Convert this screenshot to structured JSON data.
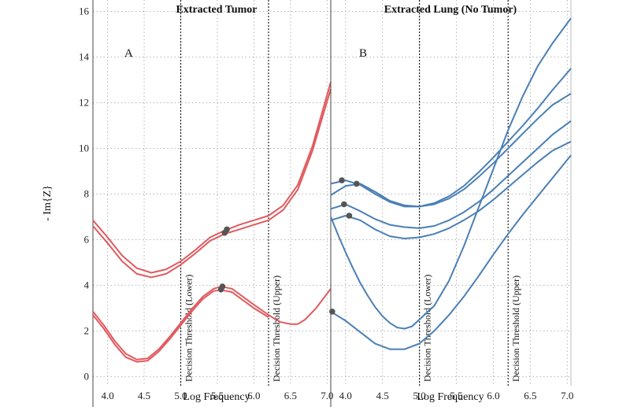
{
  "chart_data": [
    {
      "type": "line",
      "panel_letter": "A",
      "title": "Extracted Tumor",
      "xlabel": "Log Frequency",
      "ylabel": "- Im{Z}",
      "xlim": [
        3.8,
        7.05
      ],
      "ylim": [
        -0.4,
        16.5
      ],
      "x_ticks": [
        4.0,
        4.5,
        5.0,
        5.5,
        6.0,
        6.5,
        7.0
      ],
      "y_ticks": [
        0,
        2,
        4,
        6,
        8,
        10,
        12,
        14,
        16
      ],
      "grid": true,
      "line_color": "#e05a5e",
      "marker_color": "#555555",
      "thresholds": [
        {
          "x": 5.0,
          "label": "Decision Threshold (Lower)"
        },
        {
          "x": 6.2,
          "label": "Decision Threshold (Upper)"
        }
      ],
      "series": [
        {
          "x": [
            3.8,
            4.0,
            4.2,
            4.4,
            4.6,
            4.8,
            5.0,
            5.2,
            5.4,
            5.6,
            5.8,
            6.0,
            6.2,
            6.4,
            6.6,
            6.8,
            7.05
          ],
          "y": [
            6.85,
            6.1,
            5.3,
            4.75,
            4.55,
            4.7,
            5.05,
            5.55,
            6.1,
            6.4,
            6.65,
            6.85,
            7.05,
            7.5,
            8.4,
            10.1,
            12.9
          ],
          "marker": {
            "x": 5.63,
            "y": 6.45
          }
        },
        {
          "x": [
            3.8,
            4.0,
            4.2,
            4.4,
            4.6,
            4.8,
            5.0,
            5.2,
            5.4,
            5.6,
            5.8,
            6.0,
            6.2,
            6.4,
            6.6,
            6.8,
            7.05
          ],
          "y": [
            6.6,
            5.85,
            5.05,
            4.5,
            4.35,
            4.5,
            4.9,
            5.4,
            5.95,
            6.25,
            6.45,
            6.65,
            6.85,
            7.3,
            8.2,
            9.9,
            12.6
          ],
          "marker": {
            "x": 5.6,
            "y": 6.3
          }
        },
        {
          "x": [
            3.8,
            3.95,
            4.1,
            4.25,
            4.4,
            4.55,
            4.7,
            4.85,
            5.0,
            5.15,
            5.3,
            5.45,
            5.55,
            5.7,
            5.85,
            6.0,
            6.2,
            6.35,
            6.5,
            6.6,
            6.7,
            6.85,
            7.05
          ],
          "y": [
            2.85,
            2.25,
            1.55,
            1.0,
            0.75,
            0.8,
            1.2,
            1.75,
            2.35,
            2.95,
            3.5,
            3.85,
            3.95,
            3.85,
            3.5,
            3.15,
            2.7,
            2.4,
            2.3,
            2.3,
            2.5,
            3.0,
            3.85
          ],
          "marker": {
            "x": 5.57,
            "y": 3.95
          }
        },
        {
          "x": [
            3.8,
            3.95,
            4.1,
            4.25,
            4.4,
            4.55,
            4.7,
            4.85,
            5.0,
            5.15,
            5.3,
            5.45,
            5.55,
            5.7,
            5.85,
            6.0,
            6.2
          ],
          "y": [
            2.7,
            2.1,
            1.4,
            0.85,
            0.65,
            0.7,
            1.1,
            1.65,
            2.25,
            2.85,
            3.4,
            3.75,
            3.8,
            3.7,
            3.35,
            3.0,
            2.6
          ],
          "marker": {
            "x": 5.55,
            "y": 3.82
          }
        }
      ]
    },
    {
      "type": "line",
      "panel_letter": "B",
      "title": "Extracted Lung (No Tumor)",
      "xlabel": "Log Frequency",
      "xlim": [
        3.8,
        7.05
      ],
      "ylim": [
        -0.4,
        16.5
      ],
      "x_ticks": [
        4.0,
        4.5,
        5.0,
        5.5,
        6.0,
        6.5,
        7.0
      ],
      "y_ticks": [
        0,
        2,
        4,
        6,
        8,
        10,
        12,
        14,
        16
      ],
      "grid": true,
      "line_color": "#4a7fb5",
      "marker_color": "#555555",
      "thresholds": [
        {
          "x": 5.0,
          "label": "Decision Threshold (Lower)"
        },
        {
          "x": 6.2,
          "label": "Decision Threshold (Upper)"
        }
      ],
      "series": [
        {
          "x": [
            3.8,
            4.0,
            4.2,
            4.4,
            4.6,
            4.8,
            5.0,
            5.2,
            5.4,
            5.6,
            5.8,
            6.0,
            6.2,
            6.4,
            6.6,
            6.8,
            7.05
          ],
          "y": [
            8.45,
            8.6,
            8.4,
            8.0,
            7.65,
            7.45,
            7.45,
            7.6,
            7.9,
            8.35,
            8.95,
            9.6,
            10.3,
            11.0,
            11.75,
            12.55,
            13.5
          ],
          "marker": {
            "x": 3.95,
            "y": 8.6
          }
        },
        {
          "x": [
            3.8,
            4.0,
            4.2,
            4.4,
            4.6,
            4.8,
            5.0,
            5.2,
            5.4,
            5.6,
            5.8,
            6.0,
            6.2,
            6.4,
            6.6,
            6.8,
            7.05
          ],
          "y": [
            7.95,
            8.35,
            8.45,
            8.1,
            7.7,
            7.5,
            7.45,
            7.55,
            7.8,
            8.2,
            8.75,
            9.35,
            10.0,
            10.65,
            11.3,
            11.9,
            12.4
          ],
          "marker": {
            "x": 4.15,
            "y": 8.45
          }
        },
        {
          "x": [
            3.8,
            4.0,
            4.2,
            4.4,
            4.6,
            4.8,
            5.0,
            5.2,
            5.4,
            5.6,
            5.8,
            6.0,
            6.2,
            6.4,
            6.6,
            6.8,
            7.05
          ],
          "y": [
            7.35,
            7.55,
            7.25,
            6.9,
            6.65,
            6.55,
            6.5,
            6.6,
            6.85,
            7.2,
            7.65,
            8.2,
            8.8,
            9.4,
            10.0,
            10.6,
            11.2
          ],
          "marker": {
            "x": 3.98,
            "y": 7.55
          }
        },
        {
          "x": [
            3.8,
            4.0,
            4.2,
            4.4,
            4.6,
            4.8,
            5.0,
            5.2,
            5.4,
            5.6,
            5.8,
            6.0,
            6.2,
            6.4,
            6.6,
            6.8,
            7.05
          ],
          "y": [
            6.85,
            7.05,
            6.85,
            6.45,
            6.15,
            6.05,
            6.1,
            6.25,
            6.5,
            6.85,
            7.25,
            7.75,
            8.3,
            8.85,
            9.4,
            9.9,
            10.3
          ],
          "marker": {
            "x": 4.05,
            "y": 7.05
          }
        },
        {
          "x": [
            3.8,
            3.9,
            4.0,
            4.1,
            4.2,
            4.3,
            4.4,
            4.5,
            4.6,
            4.7,
            4.8,
            4.9,
            5.0,
            5.2,
            5.4,
            5.6,
            5.8,
            6.0,
            6.2,
            6.4,
            6.6,
            6.8,
            7.05
          ],
          "y": [
            7.0,
            6.2,
            5.45,
            4.75,
            4.1,
            3.55,
            3.05,
            2.65,
            2.35,
            2.15,
            2.1,
            2.2,
            2.5,
            3.1,
            4.2,
            5.7,
            7.4,
            9.1,
            10.8,
            12.3,
            13.6,
            14.6,
            15.7
          ],
          "marker": null
        },
        {
          "x": [
            3.8,
            4.0,
            4.2,
            4.4,
            4.6,
            4.8,
            5.0,
            5.2,
            5.4,
            5.6,
            5.8,
            6.0,
            6.2,
            6.4,
            6.6,
            6.8,
            7.05
          ],
          "y": [
            2.85,
            2.45,
            1.95,
            1.45,
            1.2,
            1.2,
            1.45,
            2.0,
            2.7,
            3.5,
            4.4,
            5.35,
            6.25,
            7.1,
            7.9,
            8.7,
            9.7
          ],
          "marker": {
            "x": 3.82,
            "y": 2.85
          }
        }
      ]
    }
  ]
}
